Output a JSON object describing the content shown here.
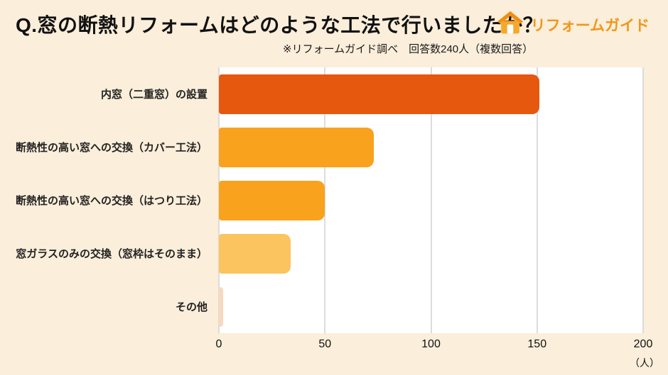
{
  "header": {
    "title": "Q.窓の断熱リフォームはどのような工法で行いましたか？",
    "subtitle": "※リフォームガイド調べ　回答数240人（複数回答）",
    "logo_text": "リフォームガイド"
  },
  "chart_data": {
    "type": "bar",
    "orientation": "horizontal",
    "title": "Q.窓の断熱リフォームはどのような工法で行いましたか？",
    "subtitle": "※リフォームガイド調べ　回答数240人（複数回答）",
    "categories": [
      "内窓（二重窓）の設置",
      "断熱性の高い窓への交換（カバー工法）",
      "断熱性の高い窓への交換（はつり工法）",
      "窓ガラスのみの交換（窓枠はそのまま）",
      "その他"
    ],
    "values": [
      151,
      73,
      50,
      34,
      2
    ],
    "bar_colors": [
      "#E5580E",
      "#F9A21D",
      "#F9A21D",
      "#FBC45F",
      "#F8D9BE"
    ],
    "xlim": [
      0,
      200
    ],
    "x_ticks": [
      0,
      50,
      100,
      150,
      200
    ],
    "x_unit": "（人）",
    "grid": true,
    "legend": "none"
  },
  "colors": {
    "background": "#FBEEDA",
    "plot_background": "#FFFFFF",
    "gridline": "#DCDCDC",
    "logo_orange": "#F0971B",
    "title_text": "#111111"
  }
}
